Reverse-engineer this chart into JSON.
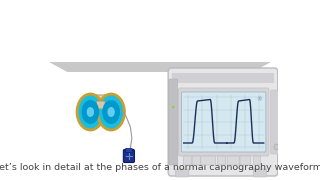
{
  "background_color": "#ffffff",
  "shelf_color": "#c8c8c8",
  "caption": "Let’s look in detail at the phases of a normal capnography waveform.",
  "caption_fontsize": 6.8,
  "waveform_color": "#1a2e5a",
  "grid_color": "#9bb5c8",
  "screen_bg": "#d5e8f0",
  "device_body_color": "#e6e6e8",
  "device_edge_color": "#cccccc",
  "lens_fill": "#1abde0",
  "lens_edge": "#c8a030",
  "lens_inner": "#0099cc",
  "hand_color": "#f0e0d0",
  "hand_edge": "#c8a080",
  "bag_color": "#1a3388",
  "strap_color": "#999999"
}
